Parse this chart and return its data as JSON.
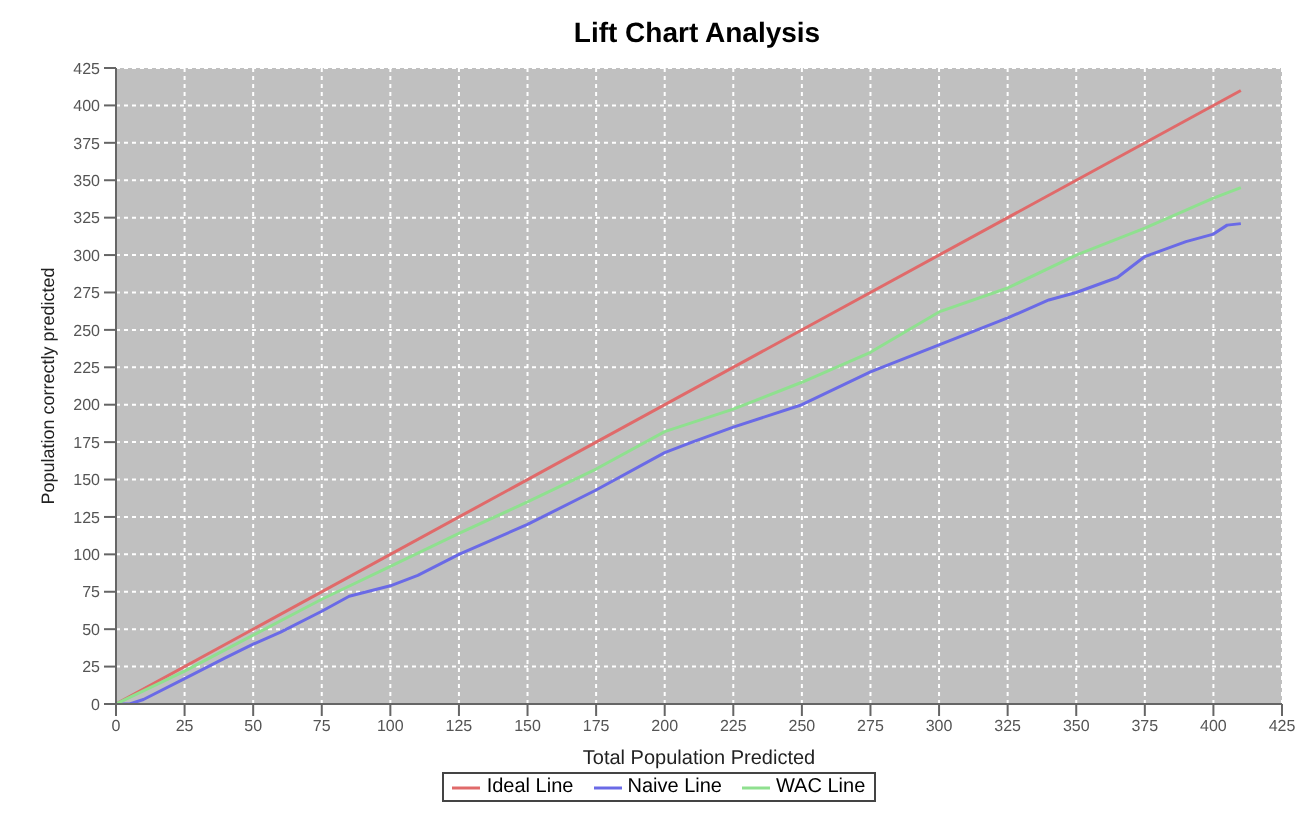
{
  "chart_data": {
    "type": "line",
    "title": "Lift Chart Analysis",
    "xlabel": "Total Population Predicted",
    "ylabel": "Population correctly predicted",
    "series": [
      {
        "name": "Ideal Line",
        "color": "#e06a6a",
        "x": [
          0,
          410
        ],
        "values": [
          0,
          410
        ]
      },
      {
        "name": "Naive Line",
        "color": "#6a6ae6",
        "x": [
          0,
          5,
          10,
          25,
          40,
          50,
          60,
          75,
          85,
          100,
          110,
          125,
          150,
          175,
          200,
          210,
          225,
          250,
          275,
          300,
          325,
          340,
          350,
          365,
          375,
          390,
          400,
          405,
          410
        ],
        "values": [
          0,
          0,
          3,
          17,
          31,
          40,
          48,
          62,
          72,
          79,
          86,
          100,
          120,
          143,
          168,
          175,
          185,
          200,
          222,
          240,
          258,
          270,
          275,
          285,
          299,
          309,
          314,
          320,
          321
        ]
      },
      {
        "name": "WAC Line",
        "color": "#8fe08f",
        "x": [
          0,
          25,
          50,
          75,
          100,
          125,
          150,
          175,
          200,
          225,
          250,
          275,
          300,
          325,
          350,
          375,
          400,
          410
        ],
        "values": [
          0,
          22,
          46,
          70,
          92,
          114,
          135,
          157,
          182,
          197,
          215,
          235,
          262,
          278,
          300,
          318,
          338,
          345
        ]
      }
    ],
    "xlim": [
      0,
      425
    ],
    "xticks": [
      0,
      25,
      50,
      75,
      100,
      125,
      150,
      175,
      200,
      225,
      250,
      275,
      300,
      325,
      350,
      375,
      400,
      425
    ],
    "ylim": [
      0,
      425
    ],
    "yticks": [
      0,
      25,
      50,
      75,
      100,
      125,
      150,
      175,
      200,
      225,
      250,
      275,
      300,
      325,
      350,
      375,
      400,
      425
    ],
    "grid": true,
    "legend": "bottom",
    "marker": "none",
    "line_style": "solid"
  }
}
